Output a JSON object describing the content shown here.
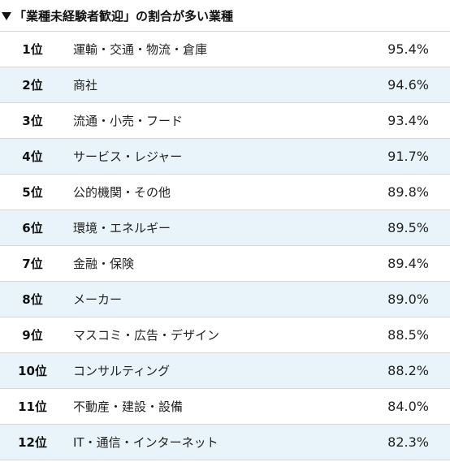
{
  "heading": {
    "icon": "down-triangle-icon",
    "title": "「業種未経験者歓迎」の割合が多い業種"
  },
  "colors": {
    "alt_row": "#e8f4fa",
    "border": "#d6d6d6"
  },
  "rows": [
    {
      "rank": "1位",
      "industry": "運輸・交通・物流・倉庫",
      "percent": "95.4%"
    },
    {
      "rank": "2位",
      "industry": "商社",
      "percent": "94.6%"
    },
    {
      "rank": "3位",
      "industry": "流通・小売・フード",
      "percent": "93.4%"
    },
    {
      "rank": "4位",
      "industry": "サービス・レジャー",
      "percent": "91.7%"
    },
    {
      "rank": "5位",
      "industry": "公的機関・その他",
      "percent": "89.8%"
    },
    {
      "rank": "6位",
      "industry": "環境・エネルギー",
      "percent": "89.5%"
    },
    {
      "rank": "7位",
      "industry": "金融・保険",
      "percent": "89.4%"
    },
    {
      "rank": "8位",
      "industry": "メーカー",
      "percent": "89.0%"
    },
    {
      "rank": "9位",
      "industry": "マスコミ・広告・デザイン",
      "percent": "88.5%"
    },
    {
      "rank": "10位",
      "industry": "コンサルティング",
      "percent": "88.2%"
    },
    {
      "rank": "11位",
      "industry": "不動産・建設・設備",
      "percent": "84.0%"
    },
    {
      "rank": "12位",
      "industry": "IT・通信・インターネット",
      "percent": "82.3%"
    }
  ]
}
